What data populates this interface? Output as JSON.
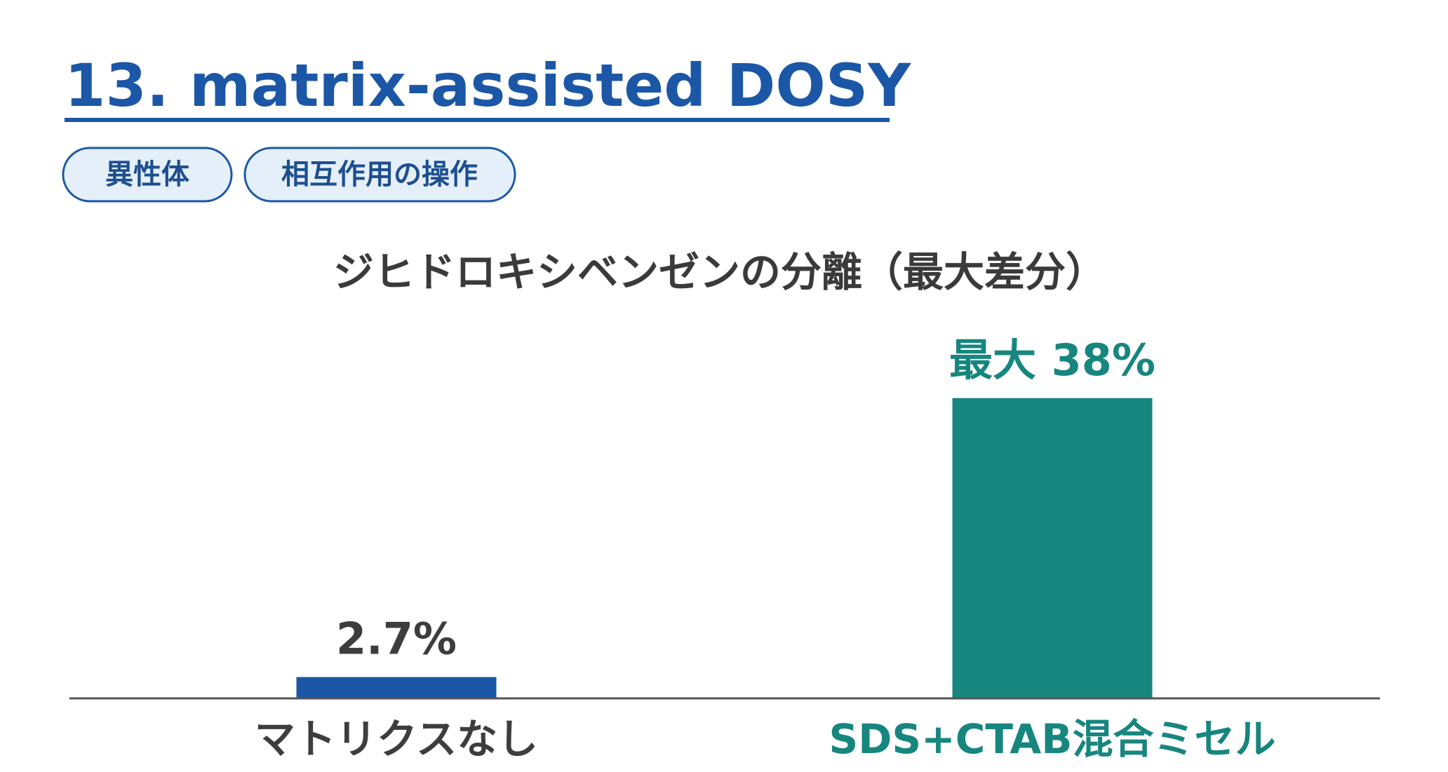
{
  "header": {
    "title": "13. matrix-assisted DOSY",
    "tags": [
      "異性体",
      "相互作用の操作"
    ]
  },
  "chart_data": {
    "type": "bar",
    "title": "ジヒドロキシベンゼンの分離（最大差分）",
    "categories": [
      "マトリクスなし",
      "SDS+CTAB混合ミセル"
    ],
    "values": [
      2.7,
      38
    ],
    "value_labels": [
      "2.7%",
      "最大 38%"
    ],
    "colors": [
      "#1b57a6",
      "#17867f"
    ],
    "label_colors": [
      "#3d3d3d",
      "#17867f"
    ]
  }
}
